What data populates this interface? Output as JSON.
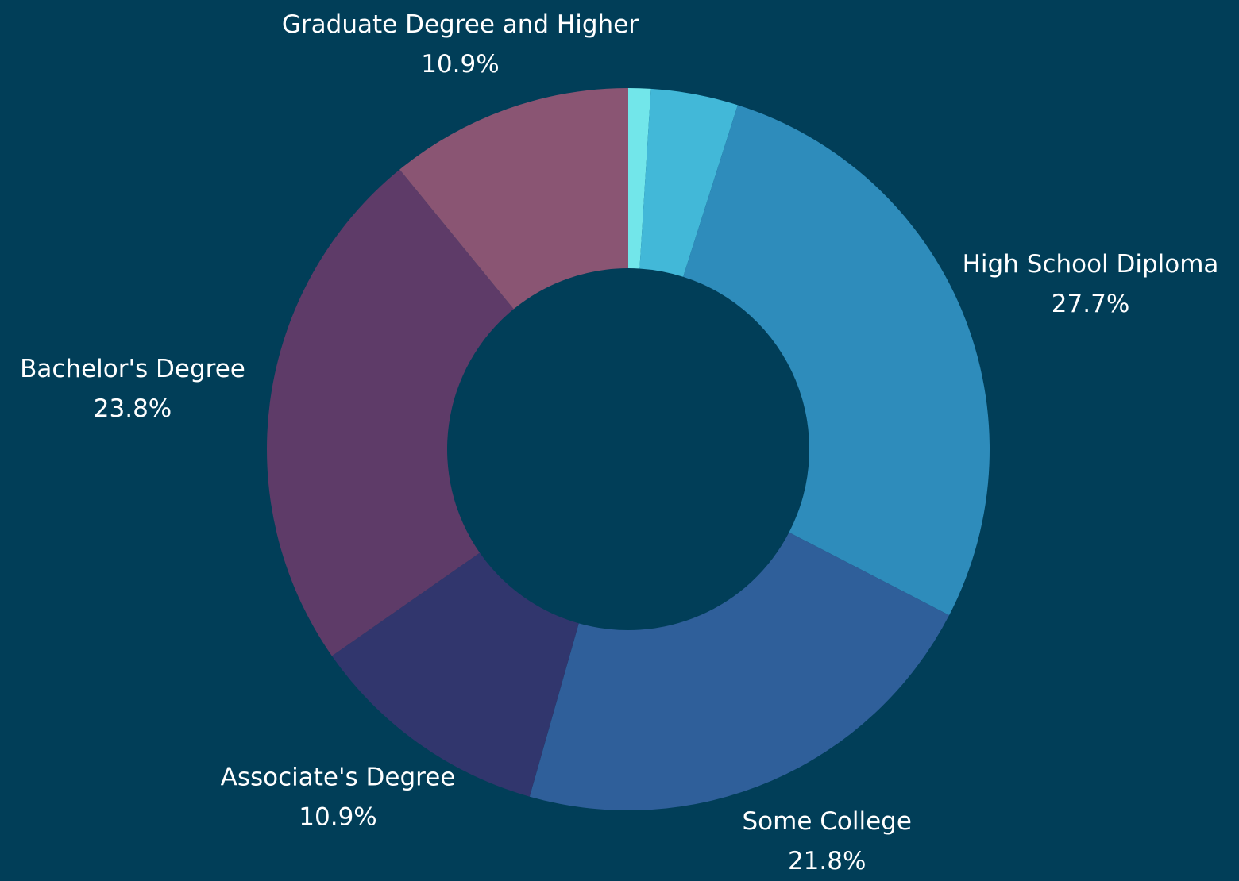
{
  "chart_data": {
    "type": "donut",
    "categories": [
      null,
      null,
      "High School Diploma",
      "Some College",
      "Associate's Degree",
      "Bachelor's Degree",
      "Graduate Degree and Higher"
    ],
    "values": [
      1.0,
      3.9,
      27.7,
      21.8,
      10.9,
      23.8,
      10.9
    ],
    "value_labels": [
      null,
      null,
      "27.7%",
      "21.8%",
      "10.9%",
      "23.8%",
      "10.9%"
    ],
    "colors": [
      "#72e6ea",
      "#42b8d8",
      "#2e8cbb",
      "#2f5f9a",
      "#31366d",
      "#5e3b68",
      "#8a5573"
    ]
  }
}
